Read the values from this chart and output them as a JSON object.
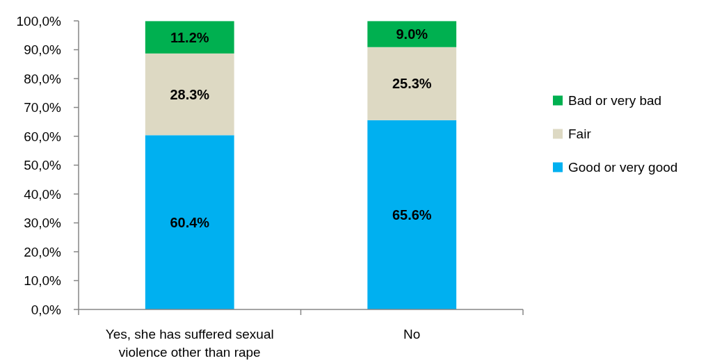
{
  "chart_data": {
    "type": "bar",
    "stacked": true,
    "legend": "right",
    "categories": [
      "Yes, she has suffered sexual violence other than rape",
      "No"
    ],
    "series": [
      {
        "name": "Good or very good",
        "color": "#00b0f0",
        "values": [
          60.4,
          65.6
        ],
        "value_labels": [
          "60.4%",
          "65.6%"
        ]
      },
      {
        "name": "Fair",
        "color": "#ddd9c3",
        "values": [
          28.3,
          25.3
        ],
        "value_labels": [
          "28.3%",
          "25.3%"
        ]
      },
      {
        "name": "Bad or very bad",
        "color": "#00b050",
        "values": [
          11.2,
          9.0
        ],
        "value_labels": [
          "11.2%",
          "9.0%"
        ]
      }
    ],
    "ylim": [
      0,
      100
    ],
    "yticks": [
      {
        "value": 0,
        "label": "0,0%"
      },
      {
        "value": 10,
        "label": "10,0%"
      },
      {
        "value": 20,
        "label": "20,0%"
      },
      {
        "value": 30,
        "label": "30,0%"
      },
      {
        "value": 40,
        "label": "40,0%"
      },
      {
        "value": 50,
        "label": "50,0%"
      },
      {
        "value": 60,
        "label": "60,0%"
      },
      {
        "value": 70,
        "label": "70,0%"
      },
      {
        "value": 80,
        "label": "80,0%"
      },
      {
        "value": 90,
        "label": "90,0%"
      },
      {
        "value": 100,
        "label": "100,0%"
      }
    ]
  }
}
